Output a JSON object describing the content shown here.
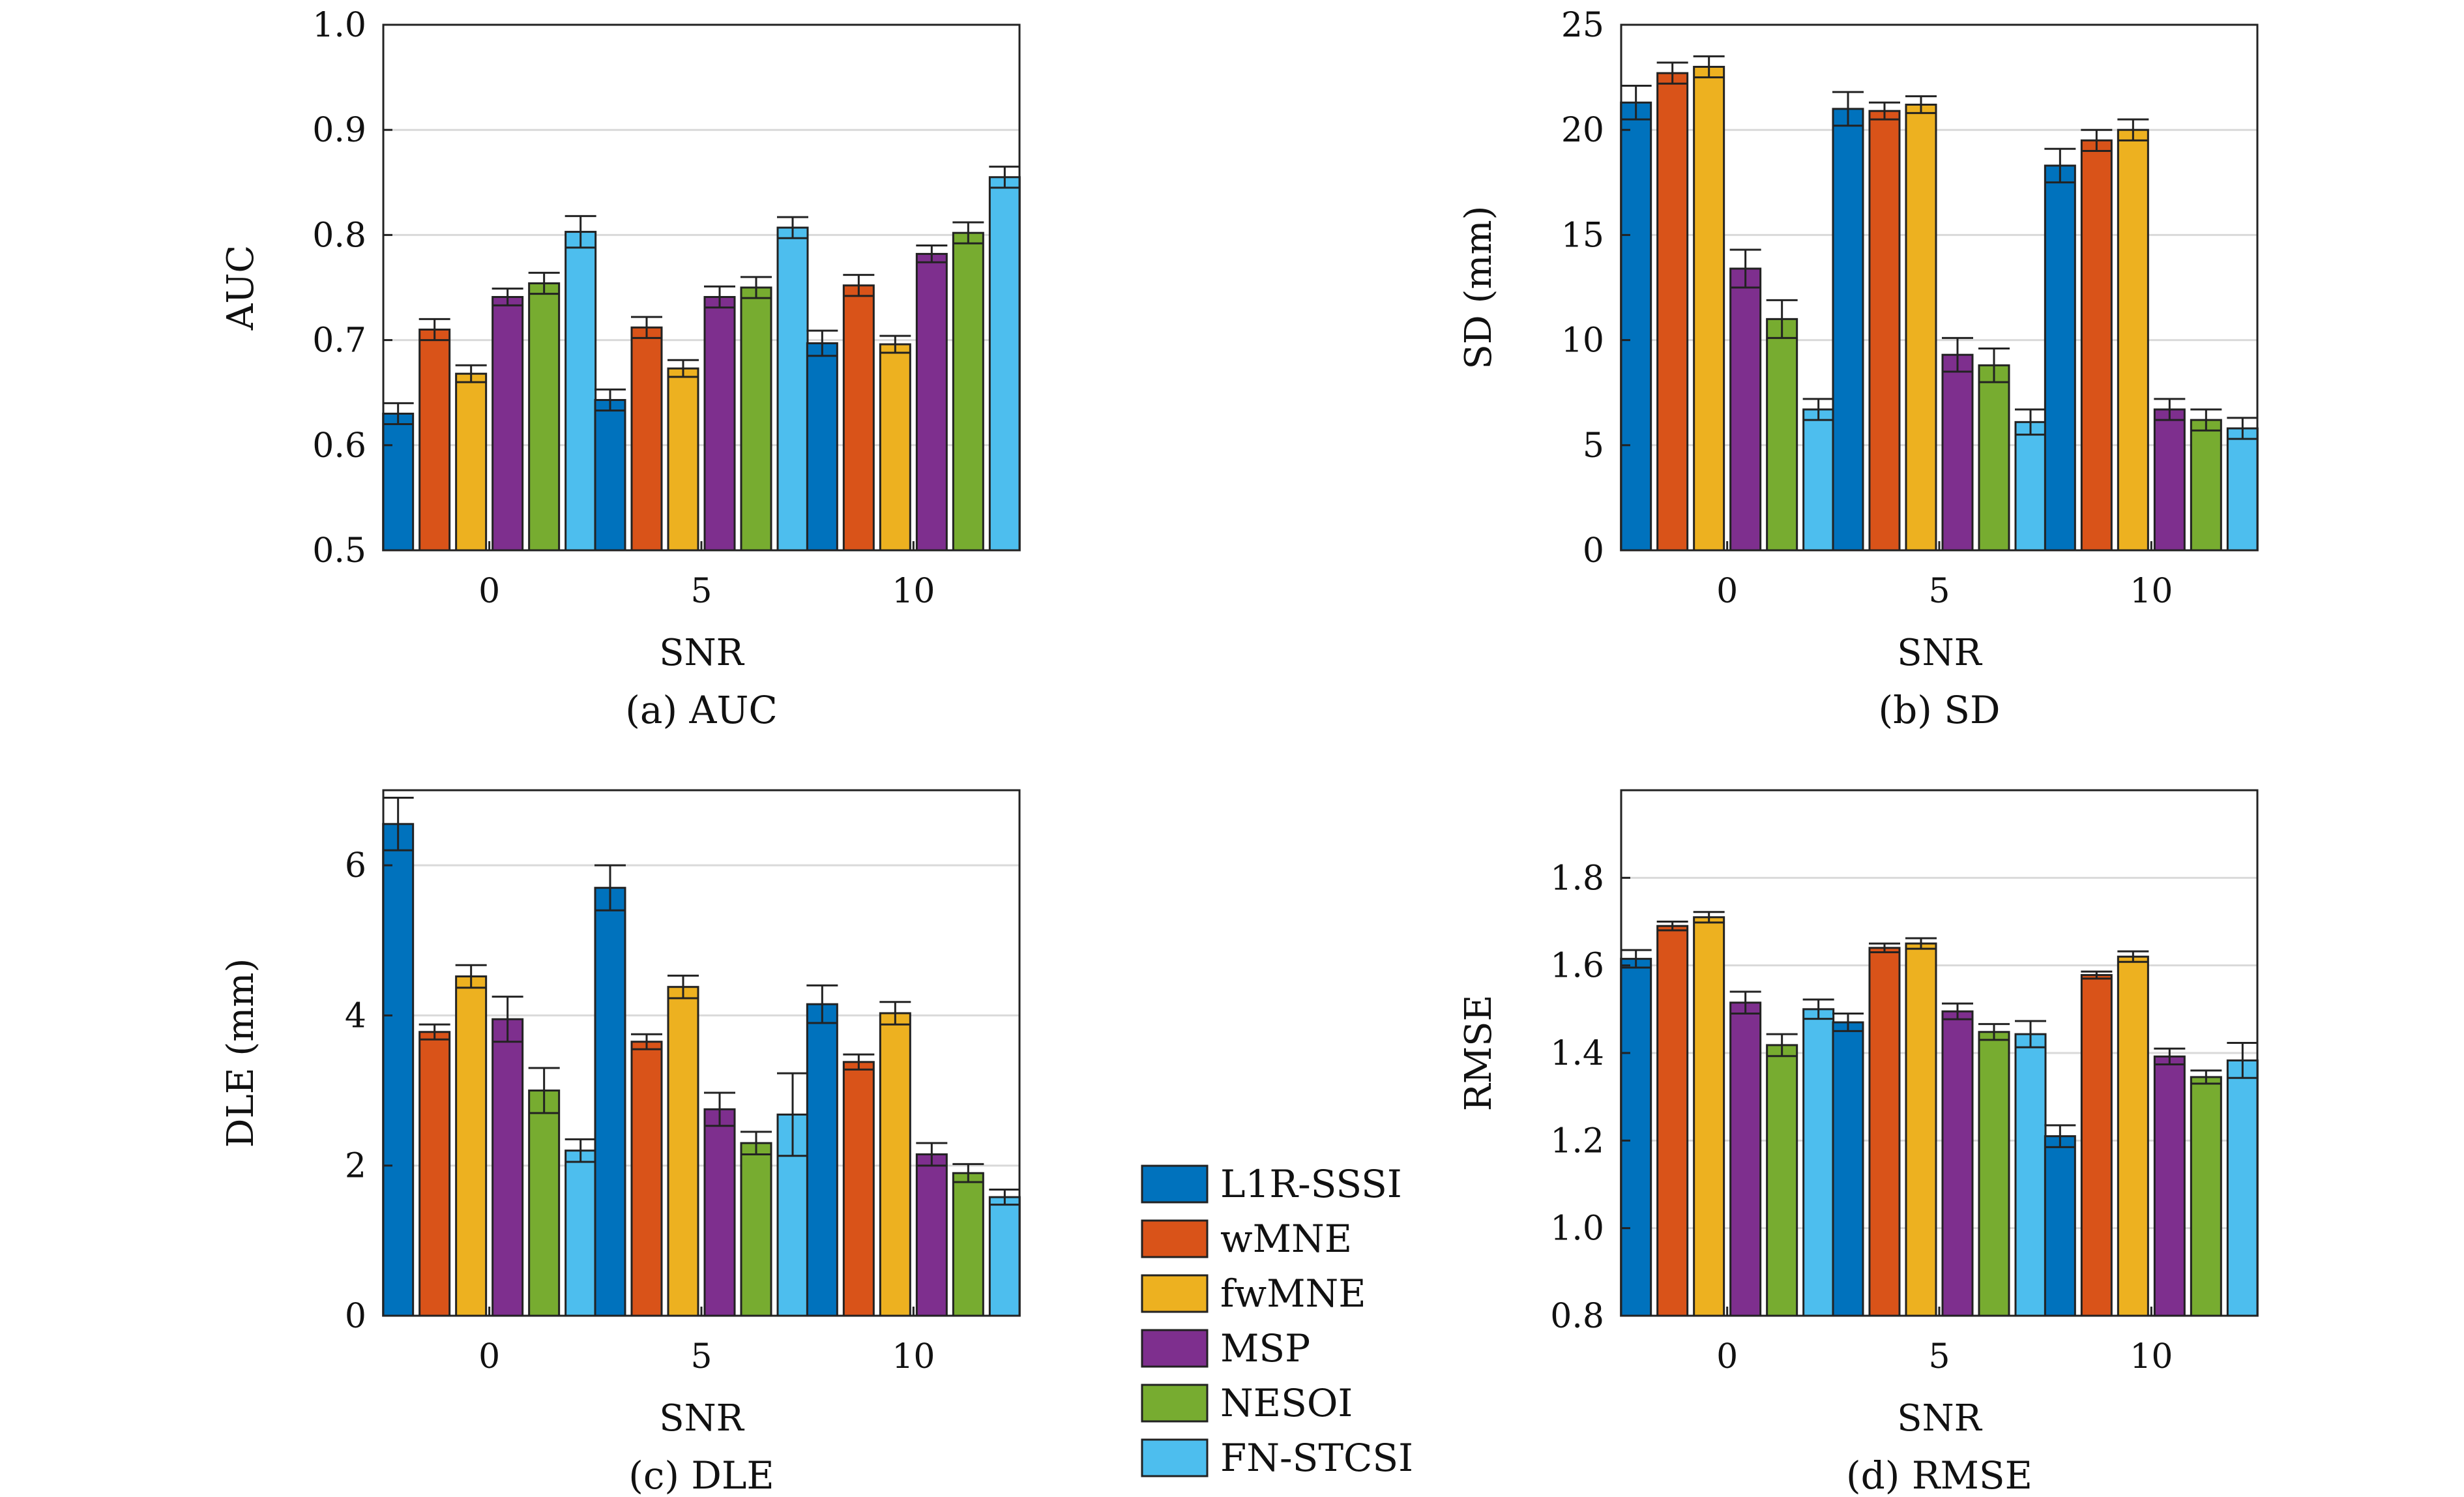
{
  "colors": [
    "#0072BD",
    "#D95319",
    "#EDB120",
    "#7E2F8E",
    "#77AC30",
    "#4DBEEE"
  ],
  "legend": {
    "entries": [
      "L1R-SSSI",
      "wMNE",
      "fwMNE",
      "MSP",
      "NESOI",
      "FN-STCSI"
    ],
    "placement": "center-bottom, between panels (c) and (d)"
  },
  "chart_data": [
    {
      "type": "bar",
      "caption": "(a) AUC",
      "xlabel": "SNR",
      "ylabel": "AUC",
      "categories": [
        "0",
        "5",
        "10"
      ],
      "ylim": [
        0.5,
        1.0
      ],
      "yticks": [
        0.5,
        0.6,
        0.7,
        0.8,
        0.9,
        1.0
      ],
      "ytick_labels": [
        "0.5",
        "0.6",
        "0.7",
        "0.8",
        "0.9",
        "1.0"
      ],
      "grid": "horizontal",
      "series": [
        {
          "name": "L1R-SSSI",
          "values": [
            0.63,
            0.643,
            0.697
          ],
          "err": [
            0.01,
            0.01,
            0.012
          ]
        },
        {
          "name": "wMNE",
          "values": [
            0.71,
            0.712,
            0.752
          ],
          "err": [
            0.01,
            0.01,
            0.01
          ]
        },
        {
          "name": "fwMNE",
          "values": [
            0.668,
            0.673,
            0.696
          ],
          "err": [
            0.008,
            0.008,
            0.008
          ]
        },
        {
          "name": "MSP",
          "values": [
            0.741,
            0.741,
            0.782
          ],
          "err": [
            0.008,
            0.01,
            0.008
          ]
        },
        {
          "name": "NESOI",
          "values": [
            0.754,
            0.75,
            0.802
          ],
          "err": [
            0.01,
            0.01,
            0.01
          ]
        },
        {
          "name": "FN-STCSI",
          "values": [
            0.803,
            0.807,
            0.855
          ],
          "err": [
            0.015,
            0.01,
            0.01
          ]
        }
      ]
    },
    {
      "type": "bar",
      "caption": "(b) SD",
      "xlabel": "SNR",
      "ylabel": "SD (mm)",
      "categories": [
        "0",
        "5",
        "10"
      ],
      "ylim": [
        0,
        25
      ],
      "yticks": [
        0,
        5,
        10,
        15,
        20,
        25
      ],
      "ytick_labels": [
        "0",
        "5",
        "10",
        "15",
        "20",
        "25"
      ],
      "grid": "horizontal",
      "series": [
        {
          "name": "L1R-SSSI",
          "values": [
            21.3,
            21.0,
            18.3
          ],
          "err": [
            0.8,
            0.8,
            0.8
          ]
        },
        {
          "name": "wMNE",
          "values": [
            22.7,
            20.9,
            19.5
          ],
          "err": [
            0.5,
            0.4,
            0.5
          ]
        },
        {
          "name": "fwMNE",
          "values": [
            23.0,
            21.2,
            20.0
          ],
          "err": [
            0.5,
            0.4,
            0.5
          ]
        },
        {
          "name": "MSP",
          "values": [
            13.4,
            9.3,
            6.7
          ],
          "err": [
            0.9,
            0.8,
            0.5
          ]
        },
        {
          "name": "NESOI",
          "values": [
            11.0,
            8.8,
            6.2
          ],
          "err": [
            0.9,
            0.8,
            0.5
          ]
        },
        {
          "name": "FN-STCSI",
          "values": [
            6.7,
            6.1,
            5.8
          ],
          "err": [
            0.5,
            0.6,
            0.5
          ]
        }
      ]
    },
    {
      "type": "bar",
      "caption": "(c) DLE",
      "xlabel": "SNR",
      "ylabel": "DLE (mm)",
      "categories": [
        "0",
        "5",
        "10"
      ],
      "ylim": [
        0,
        7
      ],
      "yticks": [
        0,
        2,
        4,
        6
      ],
      "ytick_labels": [
        "0",
        "2",
        "4",
        "6"
      ],
      "grid": "horizontal",
      "series": [
        {
          "name": "L1R-SSSI",
          "values": [
            6.55,
            5.7,
            4.15
          ],
          "err": [
            0.35,
            0.3,
            0.25
          ]
        },
        {
          "name": "wMNE",
          "values": [
            3.78,
            3.65,
            3.38
          ],
          "err": [
            0.1,
            0.1,
            0.1
          ]
        },
        {
          "name": "fwMNE",
          "values": [
            4.52,
            4.38,
            4.03
          ],
          "err": [
            0.15,
            0.15,
            0.15
          ]
        },
        {
          "name": "MSP",
          "values": [
            3.95,
            2.75,
            2.15
          ],
          "err": [
            0.3,
            0.22,
            0.15
          ]
        },
        {
          "name": "NESOI",
          "values": [
            3.0,
            2.3,
            1.9
          ],
          "err": [
            0.3,
            0.15,
            0.12
          ]
        },
        {
          "name": "FN-STCSI",
          "values": [
            2.2,
            2.68,
            1.58
          ],
          "err": [
            0.15,
            0.55,
            0.1
          ]
        }
      ]
    },
    {
      "type": "bar",
      "caption": "(d) RMSE",
      "xlabel": "SNR",
      "ylabel": "RMSE",
      "categories": [
        "0",
        "5",
        "10"
      ],
      "ylim": [
        0.8,
        2.0
      ],
      "yticks": [
        0.8,
        1.0,
        1.2,
        1.4,
        1.6,
        1.8
      ],
      "ytick_labels": [
        "0.8",
        "1.0",
        "1.2",
        "1.4",
        "1.6",
        "1.8"
      ],
      "grid": "horizontal",
      "series": [
        {
          "name": "L1R-SSSI",
          "values": [
            1.615,
            1.47,
            1.21
          ],
          "err": [
            0.02,
            0.02,
            0.025
          ]
        },
        {
          "name": "wMNE",
          "values": [
            1.69,
            1.64,
            1.578
          ],
          "err": [
            0.01,
            0.01,
            0.008
          ]
        },
        {
          "name": "fwMNE",
          "values": [
            1.71,
            1.65,
            1.62
          ],
          "err": [
            0.012,
            0.012,
            0.012
          ]
        },
        {
          "name": "MSP",
          "values": [
            1.515,
            1.495,
            1.392
          ],
          "err": [
            0.025,
            0.018,
            0.018
          ]
        },
        {
          "name": "NESOI",
          "values": [
            1.418,
            1.448,
            1.345
          ],
          "err": [
            0.025,
            0.018,
            0.015
          ]
        },
        {
          "name": "FN-STCSI",
          "values": [
            1.5,
            1.443,
            1.383
          ],
          "err": [
            0.022,
            0.03,
            0.04
          ]
        }
      ]
    }
  ]
}
